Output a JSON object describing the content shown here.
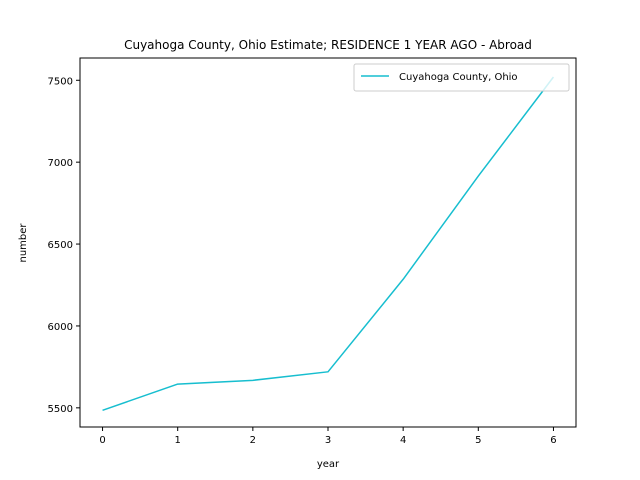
{
  "chart_data": {
    "type": "line",
    "title": "Cuyahoga County, Ohio Estimate; RESIDENCE 1 YEAR AGO - Abroad",
    "xlabel": "year",
    "ylabel": "number",
    "x": [
      0,
      1,
      2,
      3,
      4,
      5,
      6
    ],
    "series": [
      {
        "name": "Cuyahoga County, Ohio",
        "values": [
          5485,
          5645,
          5668,
          5720,
          6285,
          6915,
          7520
        ],
        "color": "#17becf"
      }
    ],
    "xticks": [
      "0",
      "1",
      "2",
      "3",
      "4",
      "5",
      "6"
    ],
    "yticks": [
      "5500",
      "6000",
      "6500",
      "7000",
      "7500"
    ],
    "ytick_values": [
      5500,
      6000,
      6500,
      7000,
      7500
    ],
    "xlim": [
      -0.3,
      6.3
    ],
    "ylim": [
      5383,
      7636
    ],
    "grid": false,
    "legend_position": "upper right"
  }
}
